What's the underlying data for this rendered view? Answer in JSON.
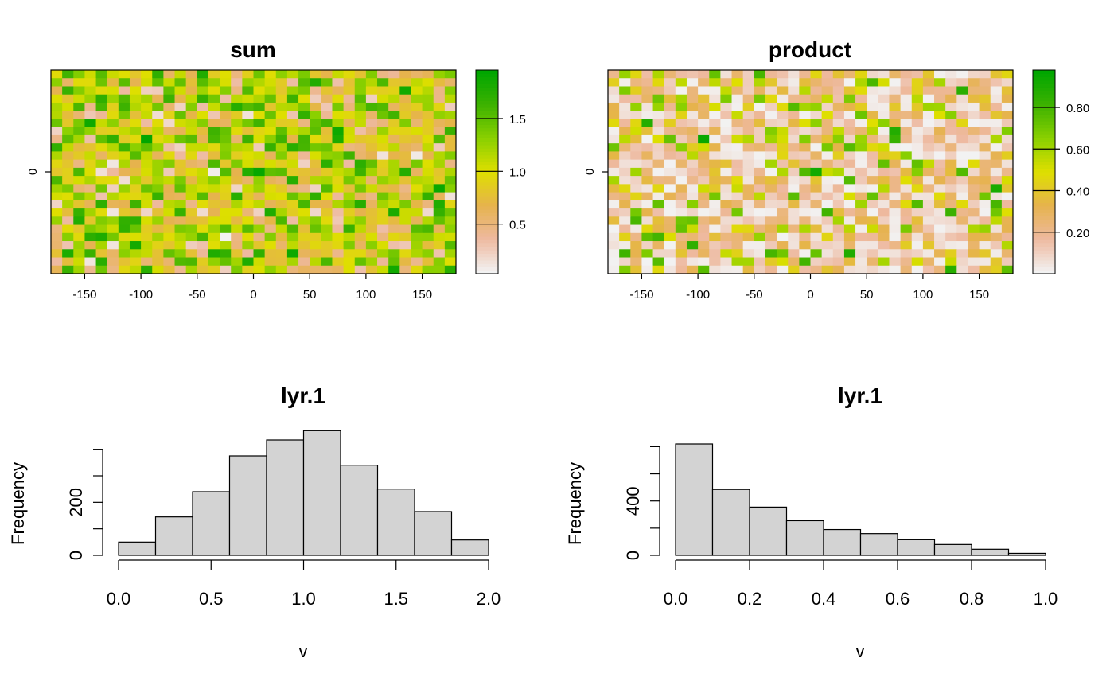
{
  "chart_data": [
    {
      "type": "heatmap",
      "title": "sum",
      "x_ticks": [
        -150,
        -100,
        -50,
        0,
        50,
        100,
        150
      ],
      "xlim": [
        -180,
        180
      ],
      "y_ticks": [
        0
      ],
      "ylim": [
        -90,
        90
      ],
      "grid_cols": 36,
      "grid_rows": 25,
      "value_range": [
        0,
        2
      ],
      "legend_ticks": [
        "0.5",
        "1.0",
        "1.5"
      ],
      "legend_values": [
        0.5,
        1.0,
        1.5
      ],
      "legend_range": [
        0.03,
        1.96
      ],
      "legend_placement": "right",
      "colors": [
        "#f2f2f2",
        "#eeb99f",
        "#e6b34d",
        "#dfdf00",
        "#8bd000",
        "#3eb200",
        "#00a600"
      ]
    },
    {
      "type": "heatmap",
      "title": "product",
      "x_ticks": [
        -150,
        -100,
        -50,
        0,
        50,
        100,
        150
      ],
      "xlim": [
        -180,
        180
      ],
      "y_ticks": [
        0
      ],
      "ylim": [
        -90,
        90
      ],
      "grid_cols": 36,
      "grid_rows": 25,
      "value_range": [
        0,
        1
      ],
      "legend_ticks": [
        "0.20",
        "0.40",
        "0.60",
        "0.80"
      ],
      "legend_values": [
        0.2,
        0.4,
        0.6,
        0.8
      ],
      "legend_range": [
        0.0,
        0.98
      ],
      "legend_placement": "right",
      "colors": [
        "#f2f2f2",
        "#eeb99f",
        "#e6b34d",
        "#dfdf00",
        "#8bd000",
        "#3eb200",
        "#00a600"
      ]
    },
    {
      "type": "bar",
      "title": "lyr.1",
      "xlabel": "v",
      "ylabel": "Frequency",
      "bin_edges": [
        0.0,
        0.2,
        0.4,
        0.6,
        0.8,
        1.0,
        1.2,
        1.4,
        1.6,
        1.8,
        2.0
      ],
      "values": [
        50,
        145,
        240,
        375,
        435,
        470,
        340,
        250,
        165,
        58
      ],
      "x_ticks": [
        "0.0",
        "0.5",
        "1.0",
        "1.5",
        "2.0"
      ],
      "x_tick_values": [
        0,
        0.5,
        1.0,
        1.5,
        2.0
      ],
      "y_ticks": [
        "0",
        "200"
      ],
      "y_tick_values": [
        0,
        100,
        200,
        300,
        400
      ],
      "y_tick_labels": [
        "0",
        "",
        "200",
        "",
        ""
      ],
      "ylim": [
        0,
        420
      ],
      "bar_color": "#d3d3d3"
    },
    {
      "type": "bar",
      "title": "lyr.1",
      "xlabel": "v",
      "ylabel": "Frequency",
      "bin_edges": [
        0.0,
        0.1,
        0.2,
        0.3,
        0.4,
        0.5,
        0.6,
        0.7,
        0.8,
        0.9,
        1.0
      ],
      "values": [
        820,
        485,
        355,
        255,
        190,
        160,
        115,
        80,
        45,
        15
      ],
      "x_ticks": [
        "0.0",
        "0.2",
        "0.4",
        "0.6",
        "0.8",
        "1.0"
      ],
      "x_tick_values": [
        0,
        0.2,
        0.4,
        0.6,
        0.8,
        1.0
      ],
      "y_ticks": [
        "0",
        "400"
      ],
      "y_tick_values": [
        0,
        200,
        400,
        600,
        800
      ],
      "y_tick_labels": [
        "0",
        "",
        "400",
        "",
        ""
      ],
      "ylim": [
        0,
        820
      ],
      "bar_color": "#d3d3d3"
    }
  ]
}
